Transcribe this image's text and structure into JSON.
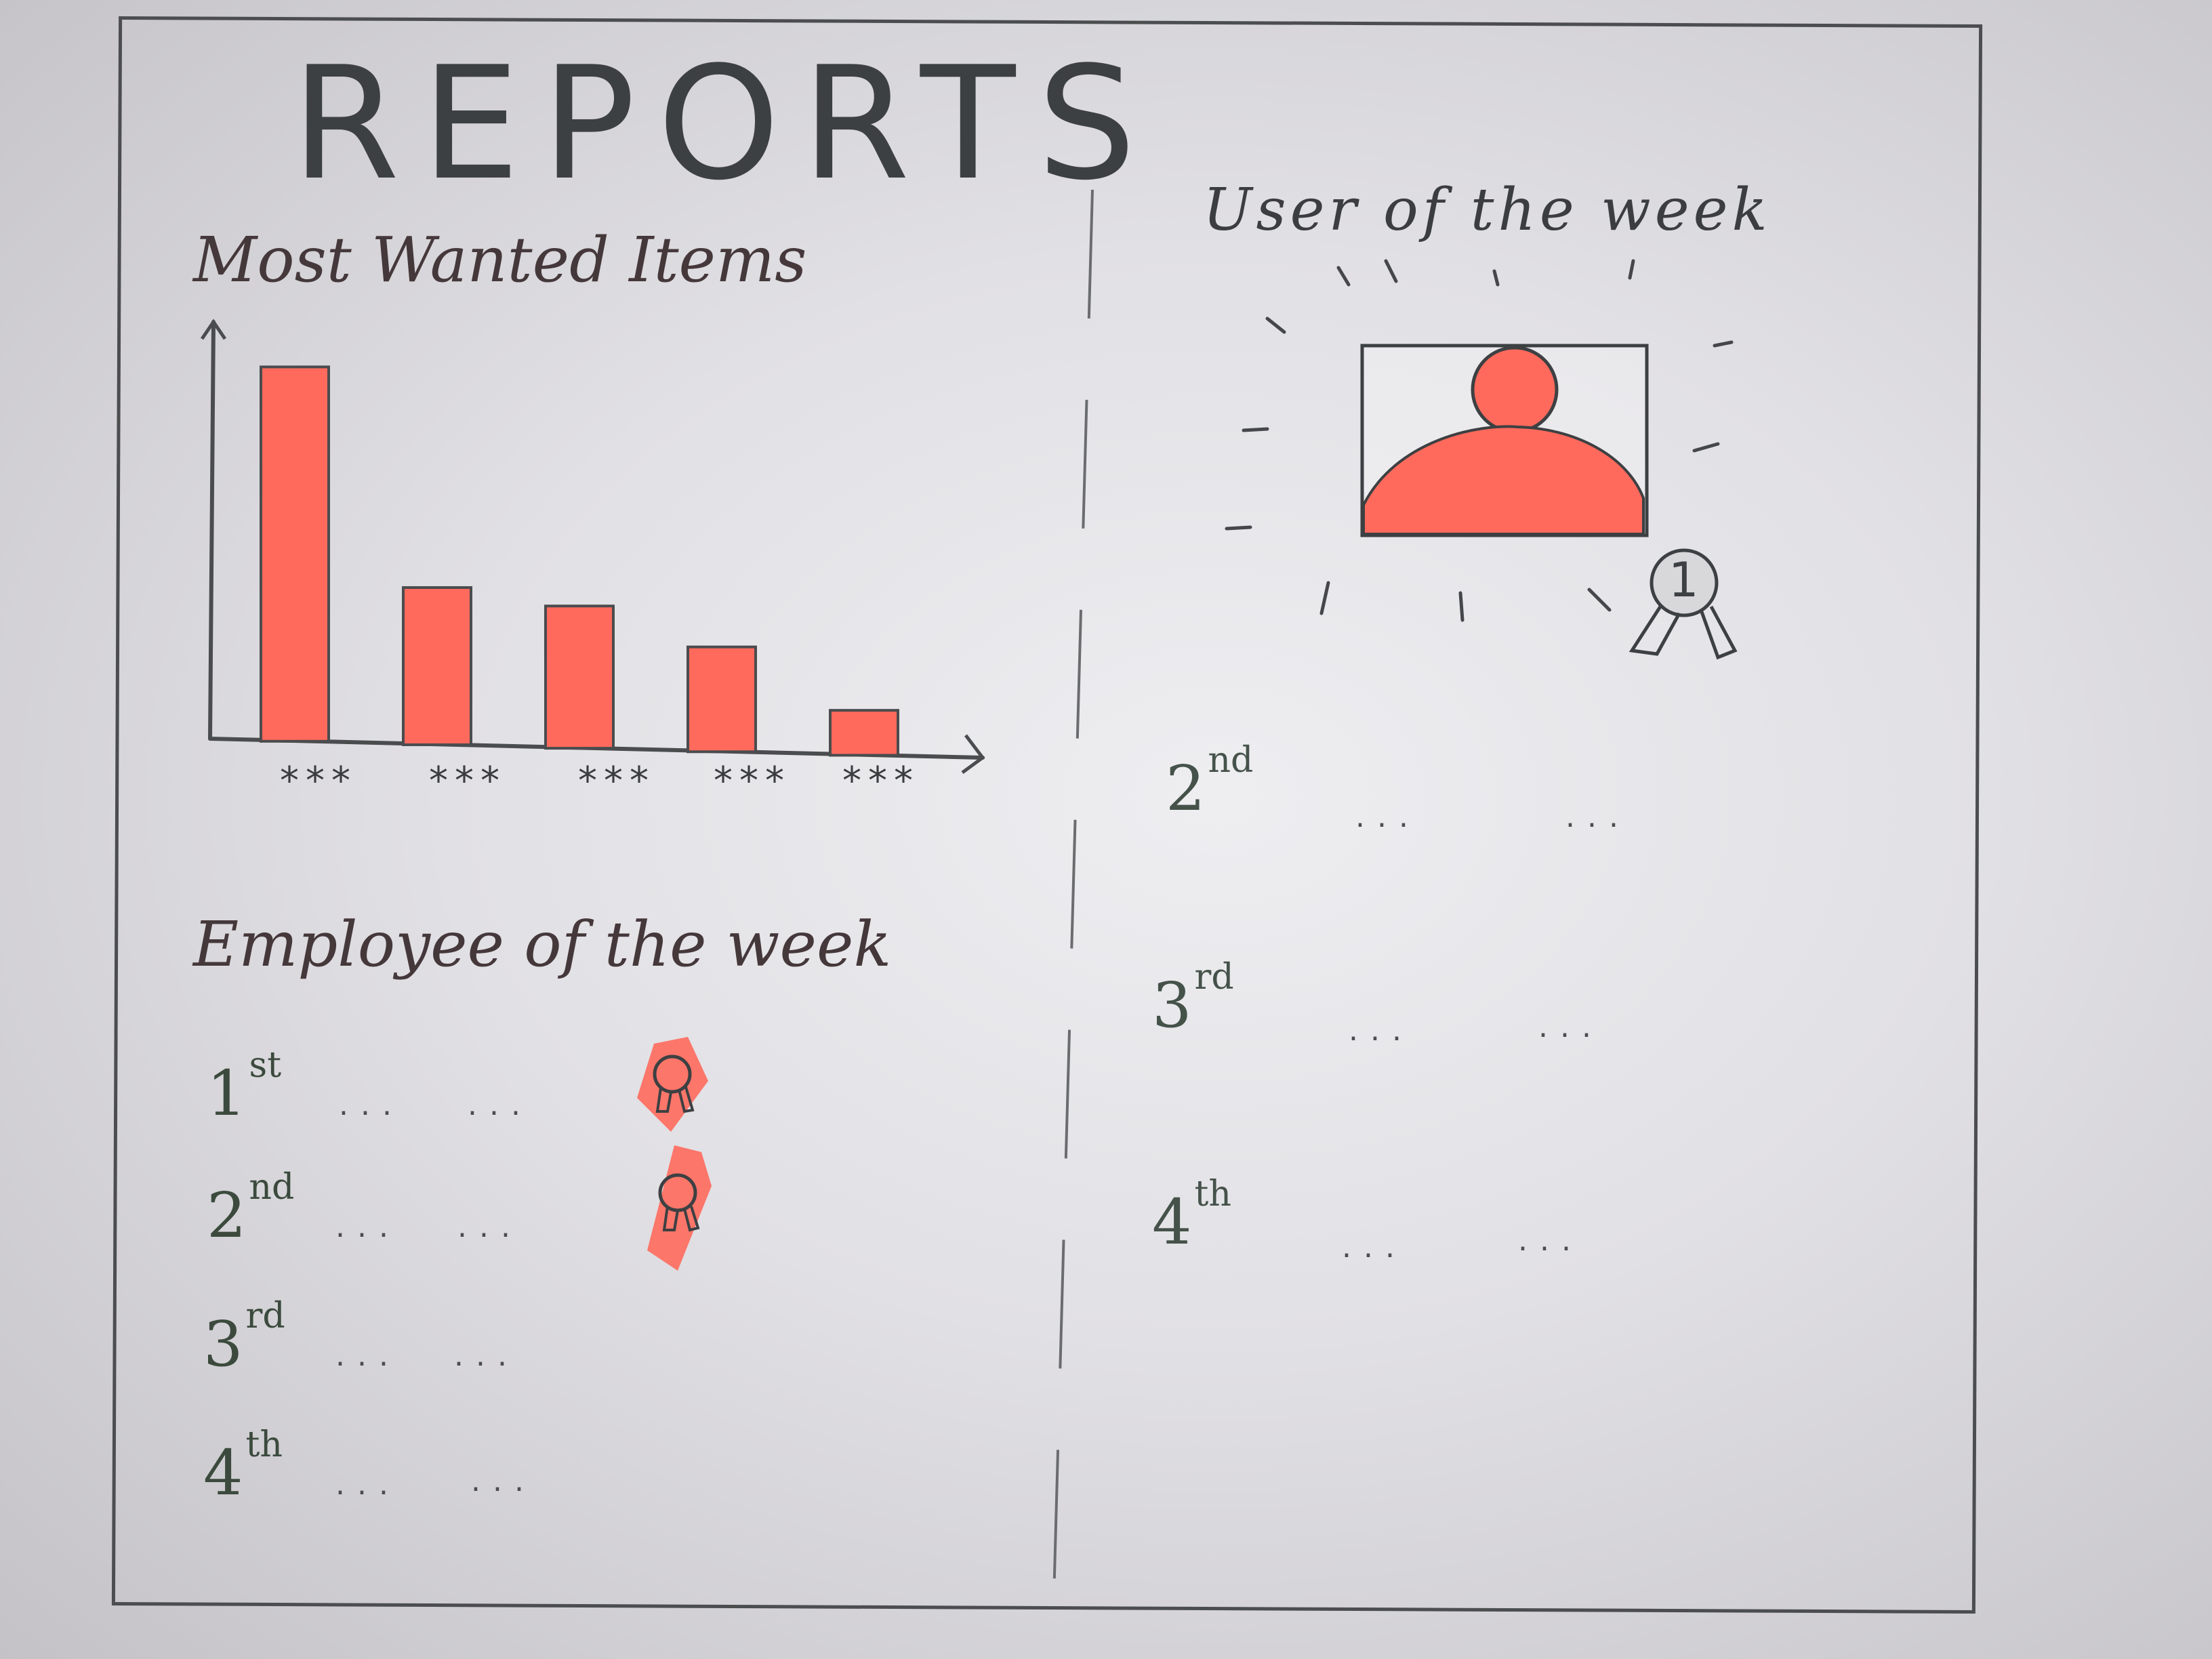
{
  "page": {
    "title": "REPORTS"
  },
  "most_wanted": {
    "heading": "Most Wanted Items",
    "chart_data": {
      "type": "bar",
      "categories": [
        "***",
        "***",
        "***",
        "***",
        "***"
      ],
      "values": [
        100,
        42,
        38,
        28,
        12
      ],
      "ylim": [
        0,
        105
      ],
      "grid": false,
      "legend": "none",
      "bar_color": "#ff6a5c",
      "axis_color": "#4a4c4e"
    }
  },
  "employee_of_week": {
    "heading": "Employee of the week",
    "rows": [
      {
        "rank": "1",
        "suffix": "st",
        "name": "...",
        "value": "...",
        "award": true
      },
      {
        "rank": "2",
        "suffix": "nd",
        "name": "...",
        "value": "...",
        "award": true
      },
      {
        "rank": "3",
        "suffix": "rd",
        "name": "...",
        "value": "...",
        "award": false
      },
      {
        "rank": "4",
        "suffix": "th",
        "name": "...",
        "value": "...",
        "award": false
      }
    ]
  },
  "user_of_week": {
    "heading": "User of the week",
    "winner_badge": "1",
    "icons": {
      "photo": "user-avatar-icon",
      "badge": "first-place-ribbon-icon"
    },
    "rows": [
      {
        "rank": "2",
        "suffix": "nd",
        "name": "...",
        "value": "..."
      },
      {
        "rank": "3",
        "suffix": "rd",
        "name": "...",
        "value": "..."
      },
      {
        "rank": "4",
        "suffix": "th",
        "name": "...",
        "value": "..."
      }
    ]
  },
  "colors": {
    "accent": "#ff6a5c",
    "pencil": "#3d4042",
    "paper": "#e8e7ea"
  }
}
